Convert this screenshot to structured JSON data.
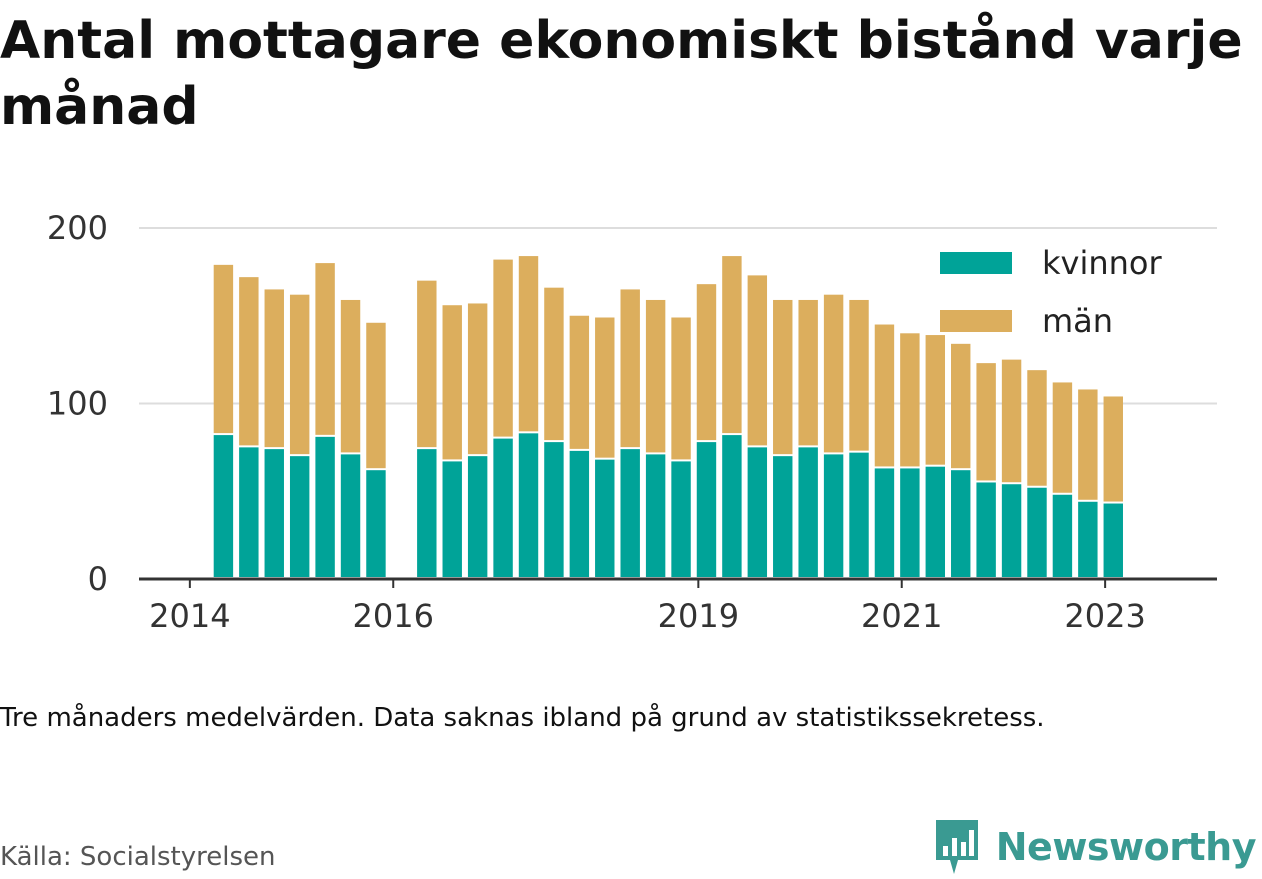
{
  "title": "Antal mottagare ekonomiskt bistånd varje månad",
  "note": "Tre månaders medelvärden. Data saknas ibland på grund av statistikssekretess.",
  "source": "Källa: Socialstyrelsen",
  "brand": {
    "name": "Newsworthy",
    "icon": "newsworthy-logo-icon",
    "color": "#3a9a92"
  },
  "chart_data": {
    "type": "bar",
    "stacked": true,
    "title": "Antal mottagare ekonomiskt bistånd varje månad",
    "xlabel": "",
    "ylabel": "",
    "ylim": [
      0,
      200
    ],
    "yticks": [
      0,
      100,
      200
    ],
    "xticks": [
      {
        "label": "2014",
        "x": 2014.0
      },
      {
        "label": "2016",
        "x": 2016.0
      },
      {
        "label": "2019",
        "x": 2019.0
      },
      {
        "label": "2021",
        "x": 2021.0
      },
      {
        "label": "2023",
        "x": 2023.0
      }
    ],
    "xlim": [
      2013.5,
      2024.1
    ],
    "grid": true,
    "legend_position": "top-right",
    "x": [
      2014.33,
      2014.58,
      2014.83,
      2015.08,
      2015.33,
      2015.58,
      2015.83,
      2016.33,
      2016.58,
      2016.83,
      2017.08,
      2017.33,
      2017.58,
      2017.83,
      2018.08,
      2018.33,
      2018.58,
      2018.83,
      2019.08,
      2019.33,
      2019.58,
      2019.83,
      2020.08,
      2020.33,
      2020.58,
      2020.83,
      2021.08,
      2021.33,
      2021.58,
      2021.83,
      2022.08,
      2022.33,
      2022.58,
      2022.83,
      2023.08
    ],
    "series": [
      {
        "name": "kvinnor",
        "color": "#00a398",
        "values": [
          82,
          75,
          74,
          70,
          81,
          71,
          62,
          74,
          67,
          70,
          80,
          83,
          78,
          73,
          68,
          74,
          71,
          67,
          78,
          82,
          75,
          70,
          75,
          71,
          72,
          63,
          63,
          64,
          62,
          55,
          54,
          52,
          48,
          44,
          43
        ]
      },
      {
        "name": "män",
        "color": "#dcae5d",
        "values": [
          97,
          97,
          91,
          92,
          99,
          88,
          84,
          96,
          89,
          87,
          102,
          101,
          88,
          77,
          81,
          91,
          88,
          82,
          90,
          102,
          98,
          89,
          84,
          91,
          87,
          82,
          77,
          75,
          72,
          68,
          71,
          67,
          64,
          64,
          61
        ]
      }
    ]
  }
}
